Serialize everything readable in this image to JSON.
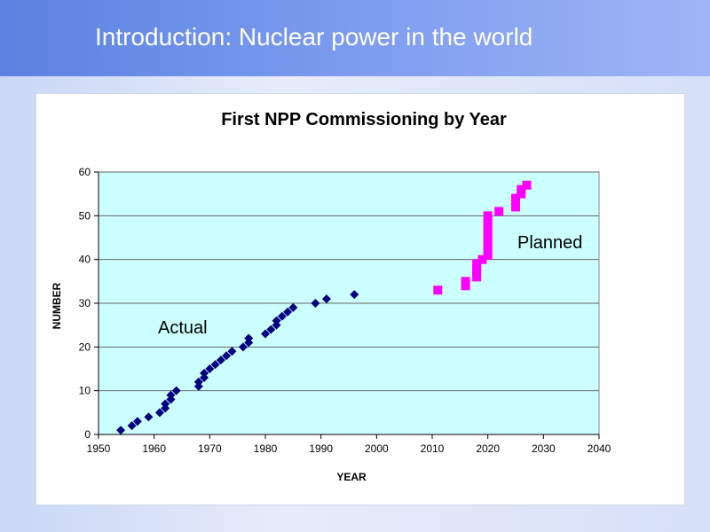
{
  "slide": {
    "title": "Introduction: Nuclear power in the world"
  },
  "chart_data": {
    "type": "scatter",
    "title": "First NPP Commissioning  by Year",
    "xlabel": "YEAR",
    "ylabel": "NUMBER",
    "xlim": [
      1950,
      2040
    ],
    "ylim": [
      0,
      60
    ],
    "xticks": [
      1950,
      1960,
      1970,
      1980,
      1990,
      2000,
      2010,
      2020,
      2030,
      2040
    ],
    "yticks": [
      0,
      10,
      20,
      30,
      40,
      50,
      60
    ],
    "grid": true,
    "plot_bg": "#ccffff",
    "annotations": [
      "Actual",
      "Planned"
    ],
    "series": [
      {
        "name": "Actual",
        "color": "#000080",
        "marker": "diamond",
        "x": [
          1954,
          1956,
          1957,
          1959,
          1961,
          1962,
          1962,
          1963,
          1963,
          1964,
          1968,
          1968,
          1969,
          1969,
          1970,
          1971,
          1972,
          1973,
          1974,
          1976,
          1977,
          1977,
          1980,
          1981,
          1982,
          1982,
          1983,
          1984,
          1985,
          1989,
          1991,
          1996
        ],
        "y": [
          1,
          2,
          3,
          4,
          5,
          6,
          7,
          8,
          9,
          10,
          11,
          12,
          13,
          14,
          15,
          16,
          17,
          18,
          19,
          20,
          21,
          22,
          23,
          24,
          25,
          26,
          27,
          28,
          29,
          30,
          31,
          32
        ]
      },
      {
        "name": "Planned",
        "color": "#ff00ff",
        "marker": "square",
        "x": [
          2011,
          2016,
          2016,
          2018,
          2018,
          2018,
          2018,
          2019,
          2020,
          2020,
          2020,
          2020,
          2020,
          2020,
          2020,
          2020,
          2020,
          2020,
          2022,
          2025,
          2025,
          2025,
          2026,
          2026,
          2027
        ],
        "y": [
          33,
          34,
          35,
          36,
          37,
          38,
          39,
          40,
          41,
          42,
          43,
          44,
          45,
          46,
          47,
          48,
          49,
          50,
          51,
          52,
          53,
          54,
          55,
          56,
          57
        ]
      }
    ]
  }
}
